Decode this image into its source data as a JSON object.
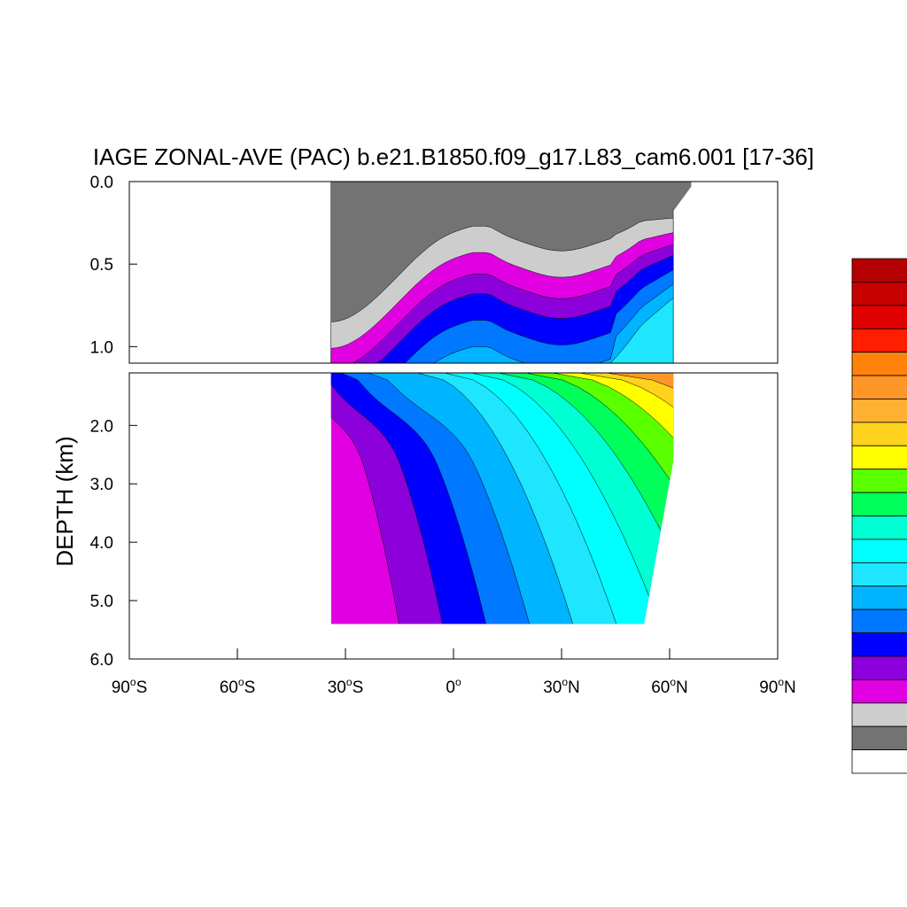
{
  "chart_data": {
    "type": "contour",
    "title": "IAGE ZONAL-AVE (PAC) b.e21.B1850.f09_g17.L83_cam6.001 [17-36]",
    "ylabel": "DEPTH (km)",
    "xlim": [
      -90,
      90
    ],
    "x_ticks": [
      {
        "value": -90,
        "deg": "90",
        "hemi": "S"
      },
      {
        "value": -60,
        "deg": "60",
        "hemi": "S"
      },
      {
        "value": -30,
        "deg": "30",
        "hemi": "S"
      },
      {
        "value": 0,
        "deg": "0",
        "hemi": ""
      },
      {
        "value": 30,
        "deg": "30",
        "hemi": "N"
      },
      {
        "value": 60,
        "deg": "60",
        "hemi": "N"
      },
      {
        "value": 90,
        "deg": "90",
        "hemi": "N"
      }
    ],
    "panels": [
      {
        "name": "upper",
        "ylim": [
          0.0,
          1.1
        ],
        "y_ticks": [
          {
            "value": 0.0,
            "label": "0.0"
          },
          {
            "value": 0.5,
            "label": "0.5"
          },
          {
            "value": 1.0,
            "label": "1.0"
          }
        ]
      },
      {
        "name": "lower",
        "ylim": [
          1.1,
          6.0
        ],
        "y_ticks": [
          {
            "value": 2.0,
            "label": "2.0"
          },
          {
            "value": 3.0,
            "label": "3.0"
          },
          {
            "value": 4.0,
            "label": "4.0"
          },
          {
            "value": 5.0,
            "label": "5.0"
          },
          {
            "value": 6.0,
            "label": "6.0"
          }
        ]
      }
    ],
    "data_extent": {
      "lat_south": -34,
      "lat_north": 61,
      "max_depth_km": 5.4
    },
    "colorbar": {
      "colors": [
        "#ffffff",
        "#737373",
        "#cdcdcd",
        "#e100e1",
        "#8c00dc",
        "#0000ff",
        "#0078ff",
        "#00b4ff",
        "#1ee6ff",
        "#00ffff",
        "#00ffd2",
        "#00ff5a",
        "#5aff00",
        "#ffff00",
        "#ffd21e",
        "#ffaf32",
        "#ff9628",
        "#ff820a",
        "#ff1e00",
        "#e10000",
        "#c80000",
        "#b40000"
      ]
    }
  }
}
